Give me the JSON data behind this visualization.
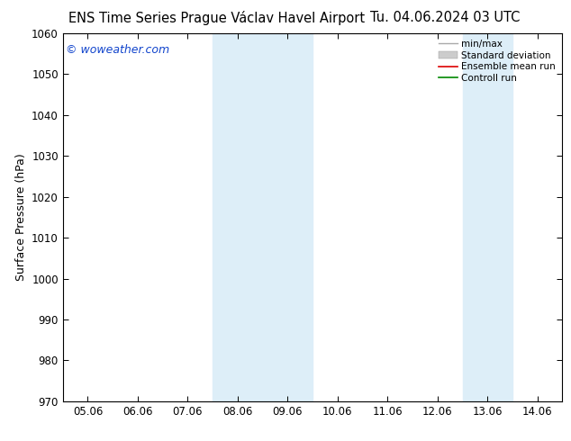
{
  "title_left": "ENS Time Series Prague Václav Havel Airport",
  "title_right": "Tu. 04.06.2024 03 UTC",
  "ylabel": "Surface Pressure (hPa)",
  "watermark": "© woweather.com",
  "ylim": [
    970,
    1060
  ],
  "yticks": [
    970,
    980,
    990,
    1000,
    1010,
    1020,
    1030,
    1040,
    1050,
    1060
  ],
  "xtick_labels": [
    "05.06",
    "06.06",
    "07.06",
    "08.06",
    "09.06",
    "10.06",
    "11.06",
    "12.06",
    "13.06",
    "14.06"
  ],
  "xtick_positions": [
    0,
    1,
    2,
    3,
    4,
    5,
    6,
    7,
    8,
    9
  ],
  "shaded_bands": [
    {
      "xstart": 3,
      "xend": 5,
      "color": "#ddeef8"
    },
    {
      "xstart": 8,
      "xend": 9,
      "color": "#ddeef8"
    }
  ],
  "legend_items": [
    {
      "label": "min/max",
      "color": "#aaaaaa",
      "lw": 1.0,
      "ls": "-",
      "type": "line"
    },
    {
      "label": "Standard deviation",
      "color": "#cccccc",
      "lw": 8,
      "ls": "-",
      "type": "patch"
    },
    {
      "label": "Ensemble mean run",
      "color": "#dd0000",
      "lw": 1.2,
      "ls": "-",
      "type": "line"
    },
    {
      "label": "Controll run",
      "color": "#008800",
      "lw": 1.2,
      "ls": "-",
      "type": "line"
    }
  ],
  "background_color": "#ffffff",
  "plot_bg_color": "#ffffff",
  "title_fontsize": 10.5,
  "axis_fontsize": 8.5,
  "watermark_color": "#1144cc",
  "watermark_fontsize": 9
}
